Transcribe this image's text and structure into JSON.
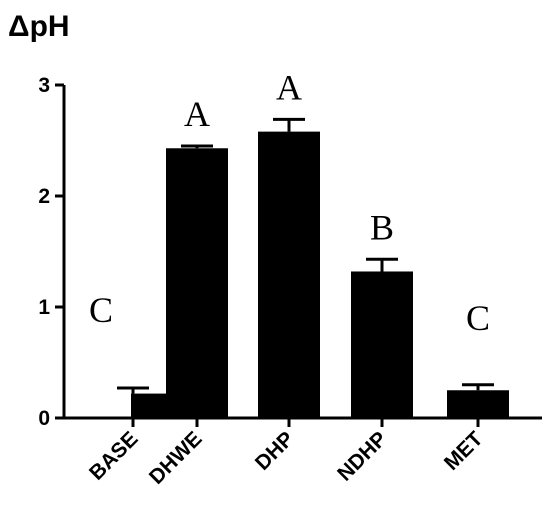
{
  "chart_data": {
    "type": "bar",
    "title": "",
    "xlabel": "",
    "ylabel": "ΔpH",
    "ylim": [
      0,
      3
    ],
    "yticks": [
      "0",
      "1",
      "2",
      "3"
    ],
    "grid": false,
    "categories": [
      "BASE",
      "DHWE",
      "DHP",
      "NDHP",
      "MET"
    ],
    "values": [
      0.22,
      2.43,
      2.58,
      1.32,
      0.25
    ],
    "errors": [
      0.05,
      0.02,
      0.11,
      0.11,
      0.05
    ],
    "significance_labels": [
      "C",
      "A",
      "A",
      "B",
      "C"
    ],
    "bar_color": "#000000"
  }
}
